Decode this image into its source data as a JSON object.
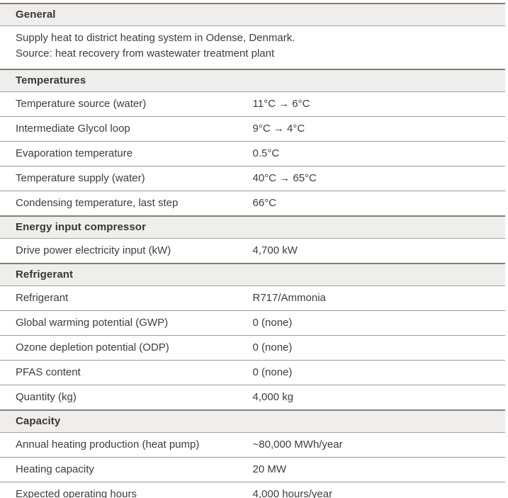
{
  "table": {
    "sections": [
      {
        "header": "General",
        "description": {
          "line1": "Supply heat to district heating system in Odense, Denmark.",
          "line2": "Source: heat recovery from wastewater treatment plant"
        }
      },
      {
        "header": "Temperatures",
        "rows": [
          {
            "label": "Temperature source (water)",
            "value": "11°C → 6°C"
          },
          {
            "label": "Intermediate Glycol loop",
            "value": "9°C → 4°C"
          },
          {
            "label": "Evaporation temperature",
            "value": "0.5°C"
          },
          {
            "label": "Temperature supply (water)",
            "value": "40°C → 65°C"
          },
          {
            "label": "Condensing temperature, last step",
            "value": "66°C"
          }
        ]
      },
      {
        "header": "Energy input compressor",
        "rows": [
          {
            "label": "Drive power electricity input (kW)",
            "value": "4,700 kW"
          }
        ]
      },
      {
        "header": "Refrigerant",
        "rows": [
          {
            "label": "Refrigerant",
            "value": "R717/Ammonia"
          },
          {
            "label": "Global warming potential (GWP)",
            "value": "0 (none)"
          },
          {
            "label": "Ozone depletion potential (ODP)",
            "value": "0 (none)"
          },
          {
            "label": "PFAS content",
            "value": "0 (none)"
          },
          {
            "label": "Quantity (kg)",
            "value": "4,000 kg"
          }
        ]
      },
      {
        "header": "Capacity",
        "rows": [
          {
            "label": "Annual heating production (heat pump)",
            "value": "~80,000 MWh/year"
          },
          {
            "label": "Heating capacity",
            "value": "20 MW"
          },
          {
            "label": "Expected operating hours",
            "value": "4,000 hours/year"
          }
        ]
      }
    ],
    "colors": {
      "header_bg": "#efeeec",
      "header_border_top": "#837e78",
      "row_border": "#9b9a98",
      "text": "#3e3d3c"
    }
  }
}
